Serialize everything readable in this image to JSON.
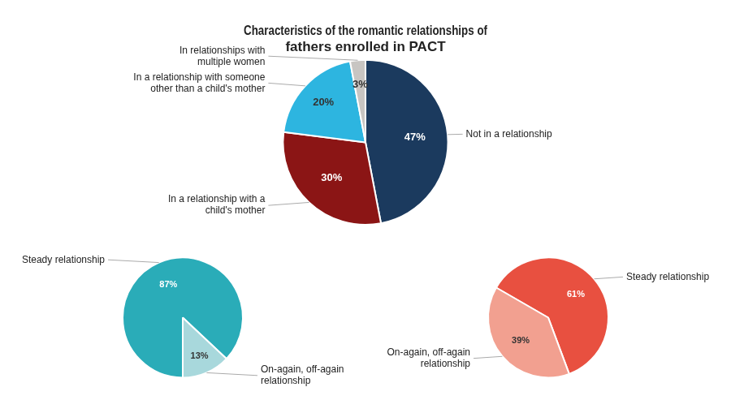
{
  "chart_data": [
    {
      "type": "pie",
      "title": "Characteristics of the romantic relationships of\nfathers enrolled in PACT",
      "categories": [
        "Not in a relationship",
        "In a relationship with a\nchild's mother",
        "In a relationship with someone\nother than a child's mother",
        "In relationships with\nmultiple women"
      ],
      "values": [
        47,
        30,
        20,
        3
      ],
      "value_labels": [
        "47%",
        "30%",
        "20%",
        "3%"
      ],
      "colors": [
        "#1b3a5e",
        "#8b1515",
        "#2db5e0",
        "#c8c5c2"
      ],
      "data_labels": true
    },
    {
      "type": "pie",
      "categories": [
        "Steady relationship",
        "On-again, off-again\nrelationship"
      ],
      "values": [
        87,
        13
      ],
      "value_labels": [
        "87%",
        "13%"
      ],
      "colors": [
        "#2aacb8",
        "#a8d8dc"
      ],
      "data_labels": true
    },
    {
      "type": "pie",
      "categories": [
        "Steady relationship",
        "On-again, off-again\nrelationship"
      ],
      "values": [
        61,
        39
      ],
      "value_labels": [
        "61%",
        "39%"
      ],
      "colors": [
        "#e85040",
        "#f2a090"
      ],
      "data_labels": true
    }
  ]
}
